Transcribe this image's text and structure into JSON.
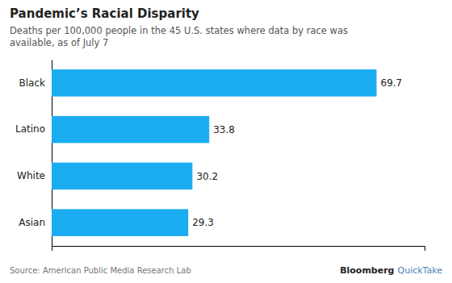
{
  "chart_data": {
    "type": "bar",
    "orientation": "horizontal",
    "title": "Pandemic’s Racial Disparity",
    "subtitle": "Deaths per 100,000 people in the 45 U.S. states where data by race was\navailable, as of July 7",
    "categories": [
      "Black",
      "Latino",
      "White",
      "Asian"
    ],
    "values": [
      69.7,
      33.8,
      30.2,
      29.3
    ],
    "color": "#1AABF0",
    "xlim": [
      0,
      80
    ],
    "tick_labels": "y",
    "data_labels": true,
    "grid": false,
    "annotations": [
      "Source: American Public Media Research Lab",
      "Bloomberg",
      "QuickTake"
    ]
  }
}
